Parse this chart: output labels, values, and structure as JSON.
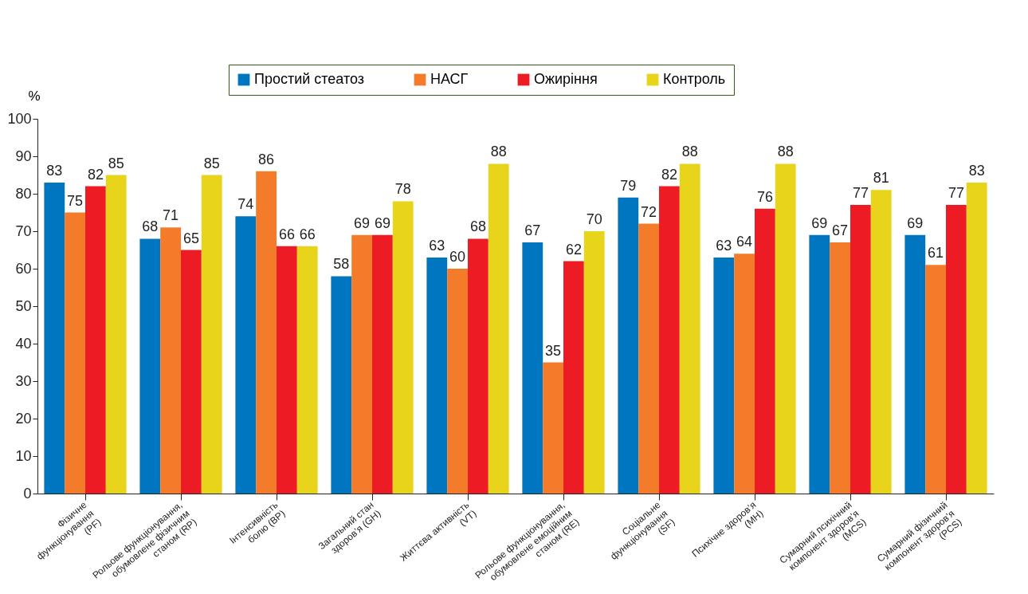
{
  "chart_data": {
    "type": "bar",
    "ylabel": "%",
    "legend": "top",
    "categories": [
      "Фізичне\nфункціонування\n(PF)",
      "Рольове функціонування,\nобумовлене фізичним\nстаном (RP)",
      "Інтенсивність\nболю (BP)",
      "Загальний стан\nздоров’я (GH)",
      "Життєва активність\n(VT)",
      "Рольове функціонування,\nобумовлене емоційним\nстаном (RE)",
      "Соціальне\nфункціонування\n(SF)",
      "Психічне  здоров’я\n(MH)",
      "Сумарний психічний\nкомпонент здоров’я\n(MCS)",
      "Сумарний фізичний\nкомпонент здоров’я\n(PCS)"
    ],
    "series": [
      {
        "name": "Простий стеатоз",
        "color": "#0076c0",
        "values": [
          83,
          68,
          74,
          58,
          63,
          67,
          79,
          63,
          69,
          69
        ]
      },
      {
        "name": "НАСГ",
        "color": "#f47b2a",
        "values": [
          75,
          71,
          86,
          69,
          60,
          35,
          72,
          64,
          67,
          61
        ]
      },
      {
        "name": "Ожиріння",
        "color": "#ed1c24",
        "values": [
          82,
          65,
          66,
          69,
          68,
          62,
          82,
          76,
          77,
          77
        ]
      },
      {
        "name": "Контроль",
        "color": "#e8d41a",
        "values": [
          85,
          85,
          66,
          78,
          88,
          70,
          88,
          88,
          81,
          83
        ]
      }
    ],
    "ylim": [
      0,
      100
    ],
    "yticks": [
      0,
      10,
      20,
      30,
      40,
      50,
      60,
      70,
      80,
      90,
      100
    ],
    "grid": false,
    "data_labels": true
  }
}
